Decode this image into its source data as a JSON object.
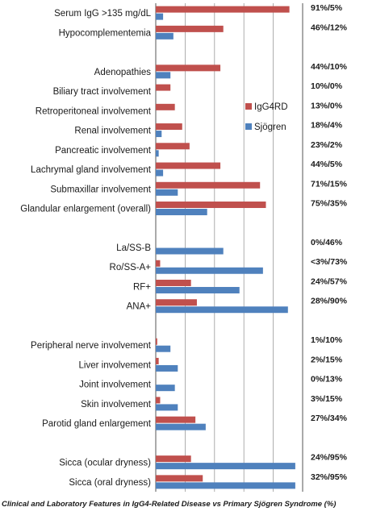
{
  "chart_data": {
    "type": "bar",
    "orientation": "horizontal",
    "title": "Clinical and Laboratory Features in IgG4-Related Disease vs Primary Sjögren Syndrome (%)",
    "xlim": [
      0,
      100
    ],
    "grid": true,
    "legend_position": "right",
    "categories": [
      "Serum IgG >135 mg/dL",
      "Hypocomplementemia",
      "",
      "Adenopathies",
      "Biliary tract involvement",
      "Retroperitoneal involvement",
      "Renal involvement",
      "Pancreatic involvement",
      "Lachrymal gland involvement",
      "Submaxillar   involvement",
      "Glandular enlargement (overall)",
      "",
      "La/SS-B",
      "Ro/SS-A+",
      "RF+",
      "ANA+",
      "",
      "Peripheral nerve involvement",
      "Liver involvement",
      "Joint involvement",
      "Skin involvement",
      "Parotid gland  enlargement",
      "",
      "Sicca (ocular dryness)",
      "Sicca (oral dryness)"
    ],
    "pct_labels": [
      "91%/5%",
      "46%/12%",
      "",
      "44%/10%",
      "10%/0%",
      "13%/0%",
      "18%/4%",
      "23%/2%",
      "44%/5%",
      "71%/15%",
      "75%/35%",
      "",
      "0%/46%",
      "<3%/73%",
      "24%/57%",
      "28%/90%",
      "",
      "1%/10%",
      "2%/15%",
      "0%/13%",
      "3%/15%",
      "27%/34%",
      "",
      "24%/95%",
      "32%/95%"
    ],
    "series": [
      {
        "name": "IgG4RD",
        "color": "#c0504d",
        "values": [
          91,
          46,
          null,
          44,
          10,
          13,
          18,
          23,
          44,
          71,
          75,
          null,
          0,
          3,
          24,
          28,
          null,
          1,
          2,
          0,
          3,
          27,
          null,
          24,
          32
        ]
      },
      {
        "name": "Sjögren",
        "color": "#4f81bd",
        "values": [
          5,
          12,
          null,
          10,
          0,
          0,
          4,
          2,
          5,
          15,
          35,
          null,
          46,
          73,
          57,
          90,
          null,
          10,
          15,
          13,
          15,
          34,
          null,
          95,
          95
        ]
      }
    ]
  }
}
